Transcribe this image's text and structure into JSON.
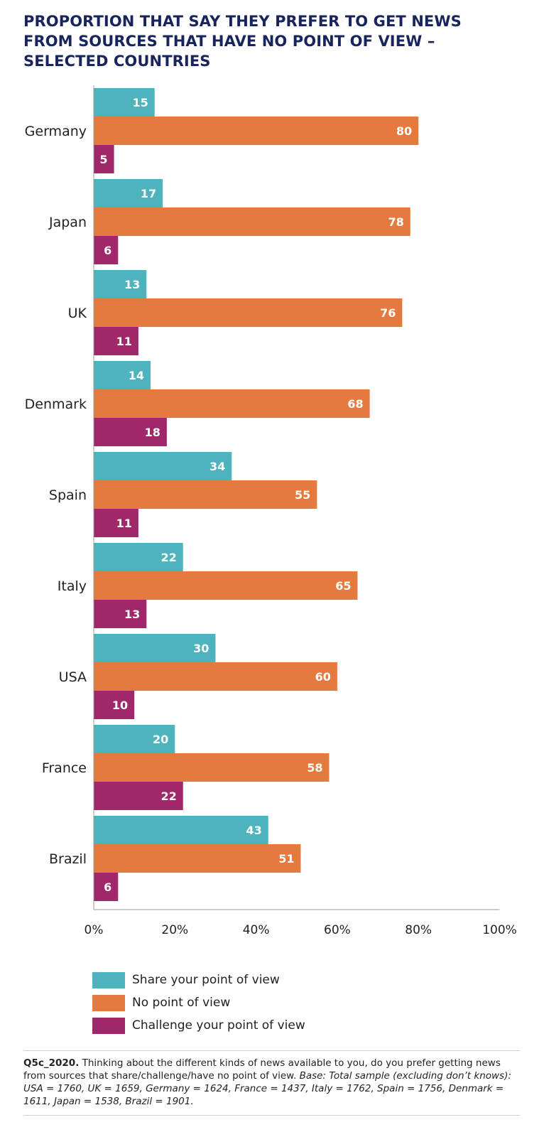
{
  "title": "PROPORTION THAT SAY THEY PREFER TO GET NEWS FROM SOURCES THAT HAVE NO POINT OF VIEW – SELECTED COUNTRIES",
  "chart_data": {
    "type": "bar",
    "orientation": "horizontal",
    "title": "PROPORTION THAT SAY THEY PREFER TO GET NEWS FROM SOURCES THAT HAVE NO POINT OF VIEW – SELECTED COUNTRIES",
    "categories": [
      "Germany",
      "Japan",
      "UK",
      "Denmark",
      "Spain",
      "Italy",
      "USA",
      "France",
      "Brazil"
    ],
    "series": [
      {
        "name": "Share your point of view",
        "color": "#4fb3bd",
        "values": [
          15,
          17,
          13,
          14,
          34,
          22,
          30,
          20,
          43
        ]
      },
      {
        "name": "No point of view",
        "color": "#e47a3e",
        "values": [
          80,
          78,
          76,
          68,
          55,
          65,
          60,
          58,
          51
        ]
      },
      {
        "name": "Challenge your point of view",
        "color": "#a0286a",
        "values": [
          5,
          6,
          11,
          18,
          11,
          13,
          10,
          22,
          6
        ]
      }
    ],
    "xlim": [
      0,
      100
    ],
    "xticks": [
      "0%",
      "20%",
      "40%",
      "60%",
      "80%",
      "100%"
    ],
    "xlabel": "",
    "ylabel": "",
    "legend_position": "bottom-left"
  },
  "footnote": {
    "question_id": "Q5c_2020.",
    "question_text": " Thinking about the different kinds of news available to you, do you prefer getting news from sources that share/challenge/have no point of view. ",
    "base": "Base: Total sample (excluding don’t knows): USA = 1760, UK = 1659, Germany = 1624, France = 1437, Italy = 1762, Spain = 1756, Denmark = 1611, Japan = 1538, Brazil = 1901."
  }
}
